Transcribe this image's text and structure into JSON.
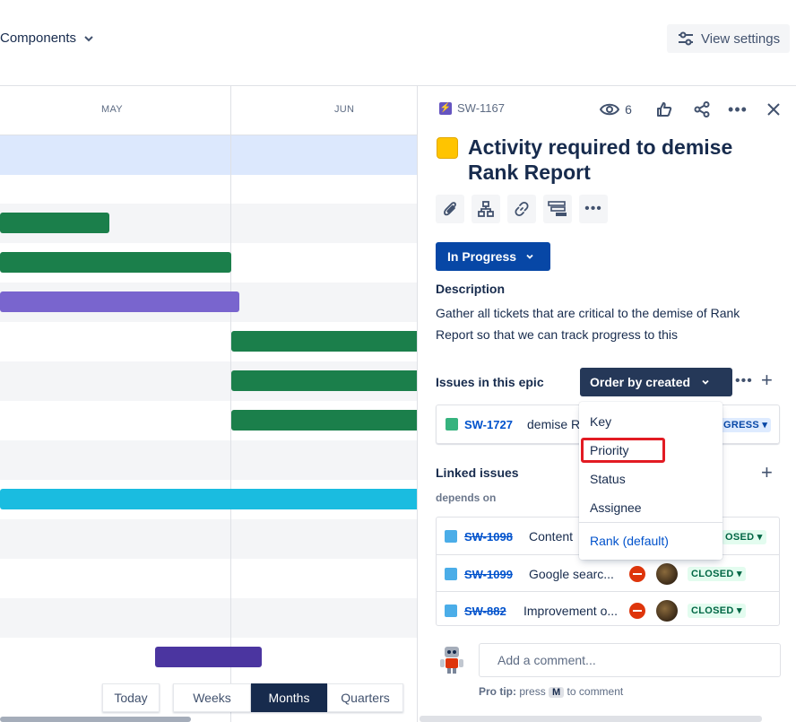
{
  "topbar": {
    "components_label": "Components",
    "view_settings_label": "View settings"
  },
  "timeline": {
    "months": [
      "MAY",
      "JUN"
    ],
    "bar_colors": {
      "green": "#1B7F4B",
      "purple": "#7965CE",
      "cyan": "#1ABCE0",
      "indigo": "#4B35A0",
      "selected_row": "#DCE8FD"
    },
    "timescale": {
      "today": "Today",
      "options": [
        "Weeks",
        "Months",
        "Quarters"
      ],
      "selected": "Months"
    }
  },
  "panel": {
    "issue_key": "SW-1167",
    "watchers_count": "6",
    "title": "Activity required to demise Rank Report",
    "status": "In Progress",
    "description_label": "Description",
    "description": "Gather all tickets that are critical to the demise of Rank Report so that we can track progress to this",
    "issues_in_epic_label": "Issues in this epic",
    "order_by_label": "Order by created",
    "epic_issues": [
      {
        "key": "SW-1727",
        "summary": "demise R",
        "status": "GRESS"
      }
    ],
    "linked_issues_label": "Linked issues",
    "depends_on_label": "depends on",
    "linked_issues": [
      {
        "key": "SW-1098",
        "summary": "Content",
        "status": "OSED",
        "icon": "subtask-icon"
      },
      {
        "key": "SW-1099",
        "summary": "Google searc...",
        "status": "CLOSED",
        "icon": "subtask-icon"
      },
      {
        "key": "SW-882",
        "summary": "Improvement o...",
        "status": "CLOSED",
        "icon": "checkbox-icon"
      }
    ],
    "comment_placeholder": "Add a comment...",
    "pro_tip_label": "Pro tip:",
    "pro_tip_press": "press",
    "pro_tip_key": "M",
    "pro_tip_suffix": "to comment"
  },
  "order_dropdown": {
    "options": [
      "Key",
      "Priority",
      "Status",
      "Assignee"
    ],
    "default_option": "Rank (default)",
    "highlighted": "Priority"
  },
  "colors": {
    "primary_blue": "#0747A6",
    "link_blue": "#0052CC",
    "dark_navy": "#253858",
    "epic_yellow": "#FFC400",
    "closed_green": "#006644"
  }
}
